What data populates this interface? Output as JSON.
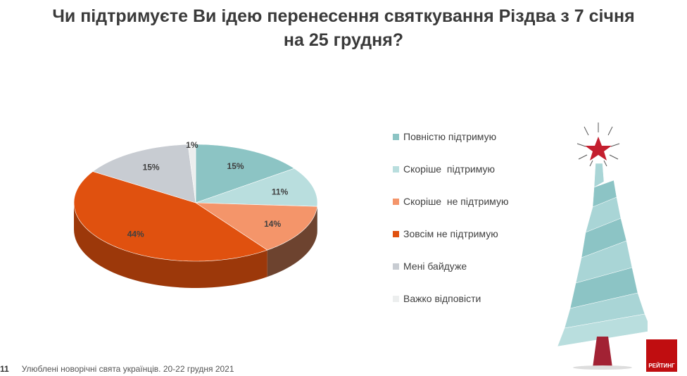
{
  "title": {
    "line1": "Чи підтримуєте Ви ідею перенесення святкування Різдва з 7 січня",
    "line2": "на 25 грудня?"
  },
  "chart_data": {
    "type": "pie",
    "style": "3d",
    "start": "top, clockwise",
    "legend_position": "right",
    "categories": [
      "Повністю підтримую",
      "Скоріше  підтримую",
      "Скоріше  не підтримую",
      "Зовсім не підтримую",
      "Мені байдуже",
      "Важко відповісти"
    ],
    "values": [
      15,
      11,
      14,
      44,
      15,
      1
    ],
    "labels": [
      "15%",
      "11%",
      "14%",
      "44%",
      "15%",
      "1%"
    ],
    "colors": [
      "#8cc4c4",
      "#b9dede",
      "#f4956a",
      "#e0510f",
      "#c8ccd2",
      "#eceeee"
    ]
  },
  "footer": {
    "page": "11",
    "text": "Улюблені новорічні свята українців. 20-22 грудня 2021"
  },
  "logo": {
    "text": "РЕЙТИНГ"
  }
}
